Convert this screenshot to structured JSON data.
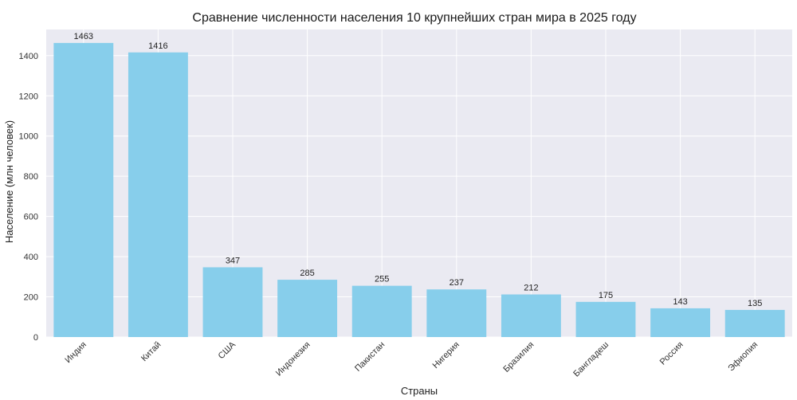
{
  "chart_data": {
    "type": "bar",
    "title": "Сравнение численности населения 10 крупнейших стран мира в 2025 году",
    "xlabel": "Страны",
    "ylabel": "Население (млн человек)",
    "categories": [
      "Индия",
      "Китай",
      "США",
      "Индонезия",
      "Пакистан",
      "Нигерия",
      "Бразилия",
      "Бангладеш",
      "Россия",
      "Эфиопия"
    ],
    "values": [
      1463,
      1416,
      347,
      285,
      255,
      237,
      212,
      175,
      143,
      135
    ],
    "value_labels": [
      "1463",
      "1416",
      "347",
      "285",
      "255",
      "237",
      "212",
      "175",
      "143",
      "135"
    ],
    "ylim": [
      0,
      1530
    ],
    "yticks": [
      0,
      200,
      400,
      600,
      800,
      1000,
      1200,
      1400
    ],
    "ytick_labels": [
      "0",
      "200",
      "400",
      "600",
      "800",
      "1000",
      "1200",
      "1400"
    ],
    "grid": true,
    "colors": {
      "bar": "#87ceeb",
      "plot_bg": "#eaeaf2",
      "grid": "#ffffff"
    }
  }
}
